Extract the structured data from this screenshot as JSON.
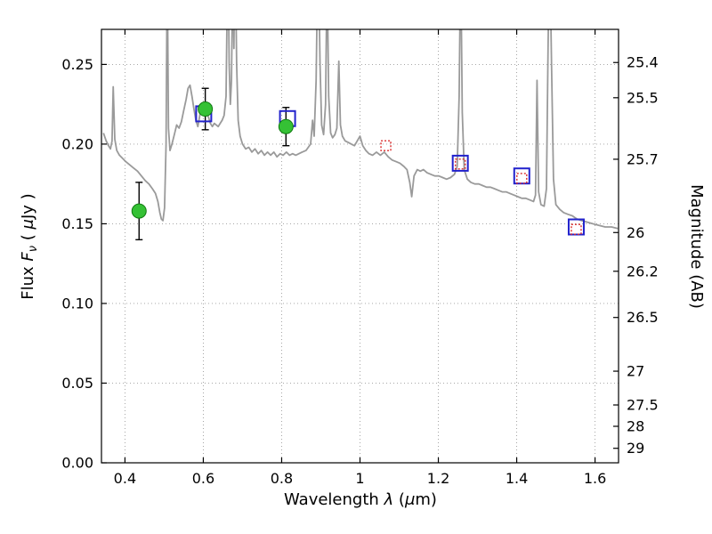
{
  "chart_data": {
    "type": "line+scatter",
    "title": "",
    "xlabel": {
      "pre": "Wavelength ",
      "italic": "λ",
      "mid": " (",
      "italic2": "μ",
      "post": "m)"
    },
    "ylabel_left": {
      "pre": "Flux ",
      "italic": "F",
      "sub": "ν",
      "mid": " ( ",
      "italic2": "μ",
      "post": "Jy )"
    },
    "ylabel_right": "Magnitude (AB)",
    "xlim": [
      0.34,
      1.66
    ],
    "ylim": [
      0.0,
      0.272
    ],
    "grid": {
      "on": true,
      "style": "dotted",
      "color": "#9c9c9c"
    },
    "axes_color": "#000000",
    "xticks": [
      {
        "v": 0.4,
        "label": "0.4"
      },
      {
        "v": 0.6,
        "label": "0.6"
      },
      {
        "v": 0.8,
        "label": "0.8"
      },
      {
        "v": 1.0,
        "label": "1"
      },
      {
        "v": 1.2,
        "label": "1.2"
      },
      {
        "v": 1.4,
        "label": "1.4"
      },
      {
        "v": 1.6,
        "label": "1.6"
      }
    ],
    "yticks_left": [
      {
        "v": 0.0,
        "label": "0.00"
      },
      {
        "v": 0.05,
        "label": "0.05"
      },
      {
        "v": 0.1,
        "label": "0.10"
      },
      {
        "v": 0.15,
        "label": "0.15"
      },
      {
        "v": 0.2,
        "label": "0.20"
      },
      {
        "v": 0.25,
        "label": "0.25"
      }
    ],
    "yticks_right": [
      {
        "label": "25.4",
        "flux": 0.2512
      },
      {
        "label": "25.5",
        "flux": 0.2291
      },
      {
        "label": "25.7",
        "flux": 0.1905
      },
      {
        "label": "26",
        "flux": 0.1445
      },
      {
        "label": "26.2",
        "flux": 0.1202
      },
      {
        "label": "26.5",
        "flux": 0.0912
      },
      {
        "label": "27",
        "flux": 0.0575
      },
      {
        "label": "27.5",
        "flux": 0.0363
      },
      {
        "label": "28",
        "flux": 0.0229
      },
      {
        "label": "29",
        "flux": 0.0091
      }
    ],
    "series": {
      "model_spectrum": {
        "color": "#9a9a9a",
        "width": 1.8,
        "points": [
          [
            0.345,
            0.207
          ],
          [
            0.352,
            0.202
          ],
          [
            0.358,
            0.199
          ],
          [
            0.363,
            0.197
          ],
          [
            0.367,
            0.202
          ],
          [
            0.37,
            0.236
          ],
          [
            0.374,
            0.203
          ],
          [
            0.379,
            0.196
          ],
          [
            0.386,
            0.193
          ],
          [
            0.394,
            0.191
          ],
          [
            0.402,
            0.189
          ],
          [
            0.412,
            0.187
          ],
          [
            0.422,
            0.185
          ],
          [
            0.432,
            0.183
          ],
          [
            0.442,
            0.18
          ],
          [
            0.452,
            0.177
          ],
          [
            0.461,
            0.175
          ],
          [
            0.47,
            0.172
          ],
          [
            0.478,
            0.169
          ],
          [
            0.484,
            0.164
          ],
          [
            0.489,
            0.157
          ],
          [
            0.493,
            0.153
          ],
          [
            0.497,
            0.152
          ],
          [
            0.501,
            0.16
          ],
          [
            0.505,
            0.2
          ],
          [
            0.508,
            0.315
          ],
          [
            0.511,
            0.21
          ],
          [
            0.515,
            0.196
          ],
          [
            0.52,
            0.2
          ],
          [
            0.526,
            0.206
          ],
          [
            0.532,
            0.212
          ],
          [
            0.538,
            0.21
          ],
          [
            0.544,
            0.214
          ],
          [
            0.55,
            0.221
          ],
          [
            0.556,
            0.228
          ],
          [
            0.561,
            0.235
          ],
          [
            0.566,
            0.237
          ],
          [
            0.571,
            0.23
          ],
          [
            0.576,
            0.222
          ],
          [
            0.581,
            0.215
          ],
          [
            0.586,
            0.211
          ],
          [
            0.591,
            0.218
          ],
          [
            0.594,
            0.224
          ],
          [
            0.598,
            0.222
          ],
          [
            0.603,
            0.224
          ],
          [
            0.608,
            0.221
          ],
          [
            0.613,
            0.217
          ],
          [
            0.618,
            0.213
          ],
          [
            0.623,
            0.211
          ],
          [
            0.628,
            0.213
          ],
          [
            0.633,
            0.212
          ],
          [
            0.638,
            0.211
          ],
          [
            0.643,
            0.213
          ],
          [
            0.648,
            0.215
          ],
          [
            0.653,
            0.218
          ],
          [
            0.658,
            0.23
          ],
          [
            0.661,
            0.29
          ],
          [
            0.663,
            0.32
          ],
          [
            0.666,
            0.25
          ],
          [
            0.669,
            0.225
          ],
          [
            0.672,
            0.24
          ],
          [
            0.675,
            0.31
          ],
          [
            0.678,
            0.26
          ],
          [
            0.681,
            0.33
          ],
          [
            0.685,
            0.25
          ],
          [
            0.689,
            0.215
          ],
          [
            0.694,
            0.205
          ],
          [
            0.7,
            0.2
          ],
          [
            0.708,
            0.197
          ],
          [
            0.716,
            0.198
          ],
          [
            0.724,
            0.195
          ],
          [
            0.732,
            0.197
          ],
          [
            0.74,
            0.194
          ],
          [
            0.748,
            0.196
          ],
          [
            0.756,
            0.193
          ],
          [
            0.764,
            0.195
          ],
          [
            0.772,
            0.193
          ],
          [
            0.78,
            0.195
          ],
          [
            0.788,
            0.192
          ],
          [
            0.796,
            0.194
          ],
          [
            0.804,
            0.193
          ],
          [
            0.812,
            0.195
          ],
          [
            0.82,
            0.193
          ],
          [
            0.828,
            0.194
          ],
          [
            0.836,
            0.193
          ],
          [
            0.844,
            0.194
          ],
          [
            0.852,
            0.195
          ],
          [
            0.862,
            0.196
          ],
          [
            0.868,
            0.198
          ],
          [
            0.874,
            0.2
          ],
          [
            0.879,
            0.215
          ],
          [
            0.883,
            0.205
          ],
          [
            0.888,
            0.24
          ],
          [
            0.893,
            0.33
          ],
          [
            0.898,
            0.25
          ],
          [
            0.902,
            0.212
          ],
          [
            0.907,
            0.206
          ],
          [
            0.912,
            0.225
          ],
          [
            0.916,
            0.31
          ],
          [
            0.92,
            0.23
          ],
          [
            0.925,
            0.207
          ],
          [
            0.93,
            0.204
          ],
          [
            0.936,
            0.206
          ],
          [
            0.941,
            0.21
          ],
          [
            0.946,
            0.252
          ],
          [
            0.95,
            0.212
          ],
          [
            0.955,
            0.205
          ],
          [
            0.962,
            0.202
          ],
          [
            0.97,
            0.201
          ],
          [
            0.978,
            0.2
          ],
          [
            0.986,
            0.199
          ],
          [
            0.993,
            0.202
          ],
          [
            1.0,
            0.205
          ],
          [
            1.007,
            0.199
          ],
          [
            1.015,
            0.196
          ],
          [
            1.023,
            0.194
          ],
          [
            1.032,
            0.193
          ],
          [
            1.042,
            0.195
          ],
          [
            1.052,
            0.193
          ],
          [
            1.062,
            0.195
          ],
          [
            1.072,
            0.192
          ],
          [
            1.082,
            0.19
          ],
          [
            1.092,
            0.189
          ],
          [
            1.102,
            0.188
          ],
          [
            1.112,
            0.186
          ],
          [
            1.12,
            0.184
          ],
          [
            1.127,
            0.176
          ],
          [
            1.132,
            0.167
          ],
          [
            1.138,
            0.18
          ],
          [
            1.146,
            0.184
          ],
          [
            1.154,
            0.183
          ],
          [
            1.162,
            0.184
          ],
          [
            1.171,
            0.182
          ],
          [
            1.181,
            0.181
          ],
          [
            1.191,
            0.18
          ],
          [
            1.201,
            0.18
          ],
          [
            1.211,
            0.179
          ],
          [
            1.221,
            0.178
          ],
          [
            1.231,
            0.179
          ],
          [
            1.241,
            0.181
          ],
          [
            1.248,
            0.186
          ],
          [
            1.253,
            0.23
          ],
          [
            1.257,
            0.32
          ],
          [
            1.261,
            0.22
          ],
          [
            1.266,
            0.184
          ],
          [
            1.274,
            0.178
          ],
          [
            1.283,
            0.176
          ],
          [
            1.293,
            0.175
          ],
          [
            1.303,
            0.175
          ],
          [
            1.313,
            0.174
          ],
          [
            1.323,
            0.173
          ],
          [
            1.333,
            0.173
          ],
          [
            1.343,
            0.172
          ],
          [
            1.353,
            0.171
          ],
          [
            1.363,
            0.17
          ],
          [
            1.373,
            0.17
          ],
          [
            1.383,
            0.169
          ],
          [
            1.393,
            0.168
          ],
          [
            1.403,
            0.167
          ],
          [
            1.413,
            0.166
          ],
          [
            1.423,
            0.166
          ],
          [
            1.433,
            0.165
          ],
          [
            1.443,
            0.164
          ],
          [
            1.448,
            0.168
          ],
          [
            1.452,
            0.24
          ],
          [
            1.456,
            0.17
          ],
          [
            1.462,
            0.162
          ],
          [
            1.47,
            0.161
          ],
          [
            1.476,
            0.172
          ],
          [
            1.48,
            0.26
          ],
          [
            1.484,
            0.33
          ],
          [
            1.489,
            0.25
          ],
          [
            1.494,
            0.178
          ],
          [
            1.5,
            0.162
          ],
          [
            1.51,
            0.159
          ],
          [
            1.52,
            0.157
          ],
          [
            1.53,
            0.156
          ],
          [
            1.542,
            0.155
          ],
          [
            1.554,
            0.153
          ],
          [
            1.566,
            0.152
          ],
          [
            1.58,
            0.151
          ],
          [
            1.594,
            0.15
          ],
          [
            1.61,
            0.149
          ],
          [
            1.626,
            0.148
          ],
          [
            1.642,
            0.148
          ],
          [
            1.658,
            0.147
          ]
        ]
      },
      "green_circles": {
        "fill": "#35c135",
        "edge": "#0f7a0f",
        "error_color": "#000000",
        "points": [
          {
            "x": 0.436,
            "y": 0.158,
            "yerr": 0.018
          },
          {
            "x": 0.605,
            "y": 0.222,
            "yerr": 0.013
          },
          {
            "x": 0.811,
            "y": 0.211,
            "yerr": 0.012
          }
        ]
      },
      "blue_squares": {
        "color": "#2222cc",
        "points": [
          {
            "x": 0.601,
            "y": 0.219
          },
          {
            "x": 0.815,
            "y": 0.216
          },
          {
            "x": 1.256,
            "y": 0.188
          },
          {
            "x": 1.413,
            "y": 0.18
          },
          {
            "x": 1.552,
            "y": 0.148
          }
        ]
      },
      "red_squares": {
        "color": "#da2a2a",
        "points": [
          {
            "x": 1.066,
            "y": 0.199
          },
          {
            "x": 1.256,
            "y": 0.1875
          },
          {
            "x": 1.413,
            "y": 0.1785
          },
          {
            "x": 1.552,
            "y": 0.1465
          }
        ]
      }
    }
  }
}
